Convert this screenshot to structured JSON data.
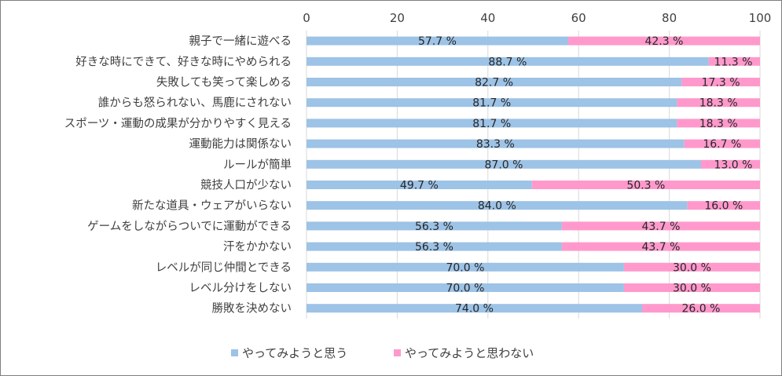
{
  "chart_data": {
    "type": "bar",
    "orientation": "horizontal",
    "stacked": true,
    "categories": [
      "親子で一緒に遊べる",
      "好きな時にできて、好きな時にやめられる",
      "失敗しても笑って楽しめる",
      "誰からも怒られない、馬鹿にされない",
      "スポーツ・運動の成果が分かりやすく見える",
      "運動能力は関係ない",
      "ルールが簡単",
      "競技人口が少ない",
      "新たな道具・ウェアがいらない",
      "ゲームをしながらついでに運動ができる",
      "汗をかかない",
      "レベルが同じ仲間とできる",
      "レベル分けをしない",
      "勝敗を決めない"
    ],
    "series": [
      {
        "name": "やってみようと思う",
        "color": "#9dc3e6",
        "values": [
          57.7,
          88.7,
          82.7,
          81.7,
          81.7,
          83.3,
          87.0,
          49.7,
          84.0,
          56.3,
          56.3,
          70.0,
          70.0,
          74.0
        ],
        "labels": [
          "57.7 %",
          "88.7 %",
          "82.7 %",
          "81.7 %",
          "81.7 %",
          "83.3 %",
          "87.0 %",
          "49.7 %",
          "84.0 %",
          "56.3 %",
          "56.3 %",
          "70.0 %",
          "70.0 %",
          "74.0 %"
        ]
      },
      {
        "name": "やってみようと思わない",
        "color": "#ff99cc",
        "values": [
          42.3,
          11.3,
          17.3,
          18.3,
          18.3,
          16.7,
          13.0,
          50.3,
          16.0,
          43.7,
          43.7,
          30.0,
          30.0,
          26.0
        ],
        "labels": [
          "42.3 %",
          "11.3 %",
          "17.3 %",
          "18.3 %",
          "18.3 %",
          "16.7 %",
          "13.0 %",
          "50.3 %",
          "16.0 %",
          "43.7 %",
          "43.7 %",
          "30.0 %",
          "30.0 %",
          "26.0 %"
        ]
      }
    ],
    "xlim": [
      0,
      100
    ],
    "xticks": [
      "0",
      "20",
      "40",
      "60",
      "80",
      "100"
    ],
    "grid": true,
    "legend_position": "bottom"
  }
}
